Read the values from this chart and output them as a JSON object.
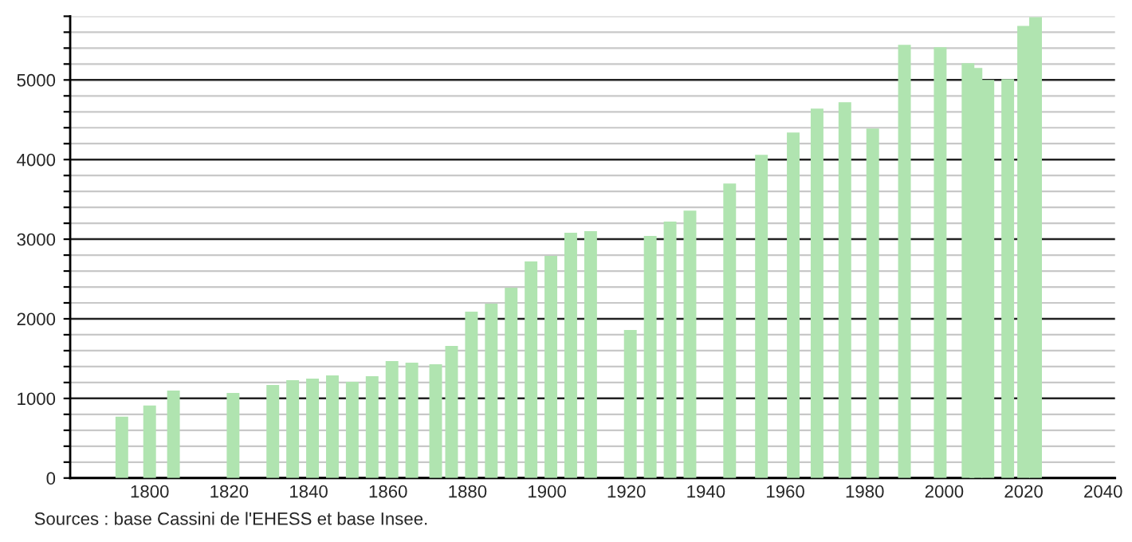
{
  "chart_data": {
    "type": "bar",
    "x": [
      1793,
      1800,
      1806,
      1821,
      1831,
      1836,
      1841,
      1846,
      1851,
      1856,
      1861,
      1866,
      1872,
      1876,
      1881,
      1886,
      1891,
      1896,
      1901,
      1906,
      1911,
      1921,
      1926,
      1931,
      1936,
      1946,
      1954,
      1962,
      1968,
      1975,
      1982,
      1990,
      1999,
      2006,
      2008,
      2011,
      2016,
      2020,
      2023
    ],
    "values": [
      770,
      910,
      1100,
      1070,
      1170,
      1230,
      1250,
      1290,
      1210,
      1280,
      1470,
      1450,
      1430,
      1660,
      2090,
      2190,
      2390,
      2720,
      2790,
      3080,
      3100,
      1860,
      3040,
      3220,
      3360,
      3700,
      4060,
      4340,
      4640,
      4720,
      4390,
      5440,
      5410,
      5210,
      5150,
      5000,
      5010,
      5680,
      5790
    ],
    "color": "#b0e4b0",
    "xlim": [
      1780,
      2043
    ],
    "xticks": [
      1800,
      1820,
      1840,
      1860,
      1880,
      1900,
      1920,
      1940,
      1960,
      1980,
      2000,
      2020,
      2040
    ],
    "ylim": [
      0,
      5800
    ],
    "yticks": [
      0,
      {
        "value": 200,
        "label": null
      },
      {
        "value": 400,
        "label": null
      },
      {
        "value": 600,
        "label": null
      },
      {
        "value": 800,
        "label": null
      },
      1000,
      {
        "value": 1200,
        "label": null
      },
      {
        "value": 1400,
        "label": null
      },
      {
        "value": 1600,
        "label": null
      },
      {
        "value": 1800,
        "label": null
      },
      2000,
      {
        "value": 2200,
        "label": null
      },
      {
        "value": 2400,
        "label": null
      },
      {
        "value": 2600,
        "label": null
      },
      {
        "value": 2800,
        "label": null
      },
      3000,
      {
        "value": 3200,
        "label": null
      },
      {
        "value": 3400,
        "label": null
      },
      {
        "value": 3600,
        "label": null
      },
      {
        "value": 3800,
        "label": null
      },
      4000,
      {
        "value": 4200,
        "label": null
      },
      {
        "value": 4400,
        "label": null
      },
      {
        "value": 4600,
        "label": null
      },
      {
        "value": 4800,
        "label": null
      },
      5000,
      {
        "value": 5200,
        "label": null
      },
      {
        "value": 5400,
        "label": null
      },
      {
        "value": 5600,
        "label": null
      },
      {
        "value": 5800,
        "label": null
      }
    ],
    "grid": "y",
    "annotations": [
      "Sources : base Cassini de l'EHESS et base Insee."
    ]
  }
}
